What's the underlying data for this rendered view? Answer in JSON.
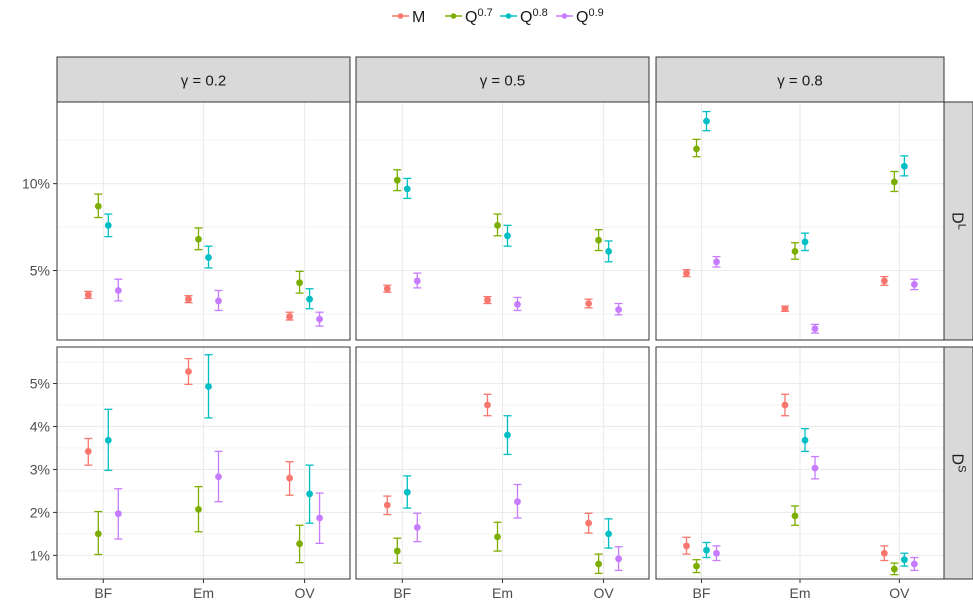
{
  "chart_data": {
    "type": "scatter",
    "subtype": "point-with-errorbars, faceted grid",
    "legend": {
      "placement": "top",
      "entries": [
        {
          "key": "M",
          "base": "M",
          "sup": ""
        },
        {
          "key": "Q07",
          "base": "Q",
          "sup": "0.7"
        },
        {
          "key": "Q08",
          "base": "Q",
          "sup": "0.8"
        },
        {
          "key": "Q09",
          "base": "Q",
          "sup": "0.9"
        }
      ]
    },
    "colors": {
      "M": "#F8766D",
      "Q07": "#7CAE00",
      "Q08": "#00BFC4",
      "Q09": "#C77CFF"
    },
    "series_order": [
      "M",
      "Q07",
      "Q08",
      "Q09"
    ],
    "categories": [
      "BF",
      "Em",
      "OV"
    ],
    "columns": [
      {
        "label": "γ = 0.2"
      },
      {
        "label": "γ = 0.5"
      },
      {
        "label": "γ = 0.8"
      }
    ],
    "rows": [
      {
        "strip": {
          "base": "D",
          "sup": "L"
        },
        "ylim": [
          1.0,
          14.7
        ],
        "gridlines": [
          2.5,
          5,
          7.5,
          10,
          12.5
        ],
        "ticks": [
          {
            "value": 5,
            "label": "5%"
          },
          {
            "value": 10,
            "label": "10%"
          }
        ]
      },
      {
        "strip": {
          "base": "D",
          "sup": "S"
        },
        "ylim": [
          0.45,
          5.85
        ],
        "gridlines": [
          0.5,
          1,
          1.5,
          2,
          2.5,
          3,
          3.5,
          4,
          4.5,
          5,
          5.5
        ],
        "ticks": [
          {
            "value": 1,
            "label": "1%"
          },
          {
            "value": 2,
            "label": "2%"
          },
          {
            "value": 3,
            "label": "3%"
          },
          {
            "value": 4,
            "label": "4%"
          },
          {
            "value": 5,
            "label": "5%"
          }
        ]
      }
    ],
    "panels": [
      {
        "row": 0,
        "col": 0,
        "points": {
          "M": [
            [
              3.6,
              3.4,
              3.8
            ],
            [
              3.35,
              3.15,
              3.55
            ],
            [
              2.35,
              2.15,
              2.6
            ]
          ],
          "Q07": [
            [
              8.7,
              8.05,
              9.4
            ],
            [
              6.8,
              6.2,
              7.45
            ],
            [
              4.3,
              3.7,
              4.95
            ]
          ],
          "Q08": [
            [
              7.6,
              6.95,
              8.25
            ],
            [
              5.75,
              5.15,
              6.4
            ],
            [
              3.35,
              2.8,
              3.95
            ]
          ],
          "Q09": [
            [
              3.85,
              3.25,
              4.5
            ],
            [
              3.25,
              2.7,
              3.85
            ],
            [
              2.2,
              1.8,
              2.6
            ]
          ]
        }
      },
      {
        "row": 0,
        "col": 1,
        "points": {
          "M": [
            [
              3.95,
              3.75,
              4.15
            ],
            [
              3.3,
              3.1,
              3.5
            ],
            [
              3.1,
              2.85,
              3.35
            ]
          ],
          "Q07": [
            [
              10.2,
              9.6,
              10.8
            ],
            [
              7.6,
              7.0,
              8.25
            ],
            [
              6.75,
              6.15,
              7.35
            ]
          ],
          "Q08": [
            [
              9.7,
              9.15,
              10.3
            ],
            [
              7.0,
              6.4,
              7.6
            ],
            [
              6.1,
              5.5,
              6.7
            ]
          ],
          "Q09": [
            [
              4.4,
              4.0,
              4.85
            ],
            [
              3.05,
              2.7,
              3.45
            ],
            [
              2.75,
              2.45,
              3.1
            ]
          ]
        }
      },
      {
        "row": 0,
        "col": 2,
        "points": {
          "M": [
            [
              4.85,
              4.65,
              5.05
            ],
            [
              2.8,
              2.65,
              2.95
            ],
            [
              4.4,
              4.15,
              4.65
            ]
          ],
          "Q07": [
            [
              12.0,
              11.55,
              12.55
            ],
            [
              6.1,
              5.65,
              6.6
            ],
            [
              10.1,
              9.55,
              10.7
            ]
          ],
          "Q08": [
            [
              13.6,
              13.05,
              14.15
            ],
            [
              6.65,
              6.15,
              7.15
            ],
            [
              11.0,
              10.45,
              11.6
            ]
          ],
          "Q09": [
            [
              5.5,
              5.2,
              5.8
            ],
            [
              1.65,
              1.4,
              1.9
            ],
            [
              4.2,
              3.9,
              4.5
            ]
          ]
        }
      },
      {
        "row": 1,
        "col": 0,
        "points": {
          "M": [
            [
              3.42,
              3.1,
              3.72
            ],
            [
              5.28,
              4.98,
              5.58
            ],
            [
              2.8,
              2.4,
              3.18
            ]
          ],
          "Q07": [
            [
              1.5,
              1.02,
              2.02
            ],
            [
              2.07,
              1.55,
              2.6
            ],
            [
              1.27,
              0.83,
              1.7
            ]
          ],
          "Q08": [
            [
              3.68,
              2.98,
              4.4
            ],
            [
              4.93,
              4.2,
              5.67
            ],
            [
              2.43,
              1.75,
              3.1
            ]
          ],
          "Q09": [
            [
              1.97,
              1.38,
              2.55
            ],
            [
              2.83,
              2.25,
              3.42
            ],
            [
              1.87,
              1.28,
              2.45
            ]
          ]
        }
      },
      {
        "row": 1,
        "col": 1,
        "points": {
          "M": [
            [
              2.17,
              1.95,
              2.38
            ],
            [
              4.5,
              4.25,
              4.75
            ],
            [
              1.75,
              1.52,
              1.98
            ]
          ],
          "Q07": [
            [
              1.1,
              0.82,
              1.4
            ],
            [
              1.43,
              1.1,
              1.77
            ],
            [
              0.8,
              0.58,
              1.03
            ]
          ],
          "Q08": [
            [
              2.47,
              2.1,
              2.85
            ],
            [
              3.8,
              3.35,
              4.25
            ],
            [
              1.5,
              1.17,
              1.85
            ]
          ],
          "Q09": [
            [
              1.65,
              1.32,
              1.98
            ],
            [
              2.25,
              1.87,
              2.65
            ],
            [
              0.92,
              0.65,
              1.2
            ]
          ]
        }
      },
      {
        "row": 1,
        "col": 2,
        "points": {
          "M": [
            [
              1.22,
              1.03,
              1.42
            ],
            [
              4.5,
              4.25,
              4.75
            ],
            [
              1.05,
              0.88,
              1.22
            ]
          ],
          "Q07": [
            [
              0.75,
              0.6,
              0.9
            ],
            [
              1.92,
              1.7,
              2.15
            ],
            [
              0.68,
              0.55,
              0.82
            ]
          ],
          "Q08": [
            [
              1.12,
              0.95,
              1.3
            ],
            [
              3.68,
              3.42,
              3.95
            ],
            [
              0.9,
              0.75,
              1.05
            ]
          ],
          "Q09": [
            [
              1.05,
              0.88,
              1.22
            ],
            [
              3.03,
              2.78,
              3.3
            ],
            [
              0.8,
              0.65,
              0.95
            ]
          ]
        }
      }
    ]
  }
}
